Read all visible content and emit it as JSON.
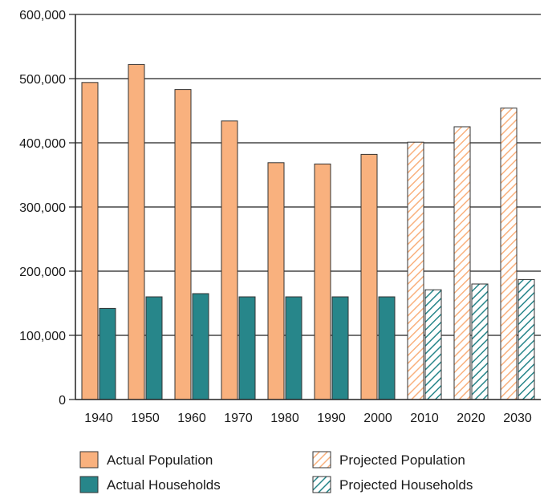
{
  "chart_data": {
    "type": "bar",
    "title": "",
    "xlabel": "",
    "ylabel": "",
    "categories": [
      "1940",
      "1950",
      "1960",
      "1970",
      "1980",
      "1990",
      "2000",
      "2010",
      "2020",
      "2030"
    ],
    "ylim": [
      0,
      600000
    ],
    "yticks": [
      0,
      100000,
      200000,
      300000,
      400000,
      500000,
      600000
    ],
    "ytick_labels": [
      "0",
      "100,000",
      "200,000",
      "300,000",
      "400,000",
      "500,000",
      "600,000"
    ],
    "grid": true,
    "legend_position": "bottom",
    "series": [
      {
        "name": "Actual Population",
        "color": "#F9B17E",
        "pattern": "solid",
        "values": [
          494000,
          522000,
          483000,
          434000,
          369000,
          367000,
          382000,
          null,
          null,
          null
        ]
      },
      {
        "name": "Actual Households",
        "color": "#27868A",
        "pattern": "solid",
        "values": [
          142000,
          160000,
          165000,
          160000,
          160000,
          160000,
          160000,
          null,
          null,
          null
        ]
      },
      {
        "name": "Projected Population",
        "color": "#F9B17E",
        "pattern": "hatched",
        "values": [
          null,
          null,
          null,
          null,
          null,
          null,
          null,
          401000,
          425000,
          454000
        ]
      },
      {
        "name": "Projected Households",
        "color": "#27868A",
        "pattern": "hatched",
        "values": [
          null,
          null,
          null,
          null,
          null,
          null,
          null,
          171000,
          180000,
          187000
        ]
      }
    ],
    "legend": [
      {
        "label": "Actual Population",
        "color": "#F9B17E",
        "pattern": "solid"
      },
      {
        "label": "Projected Population",
        "color": "#F9B17E",
        "pattern": "hatched"
      },
      {
        "label": "Actual Households",
        "color": "#27868A",
        "pattern": "solid"
      },
      {
        "label": "Projected Households",
        "color": "#27868A",
        "pattern": "hatched"
      }
    ]
  }
}
